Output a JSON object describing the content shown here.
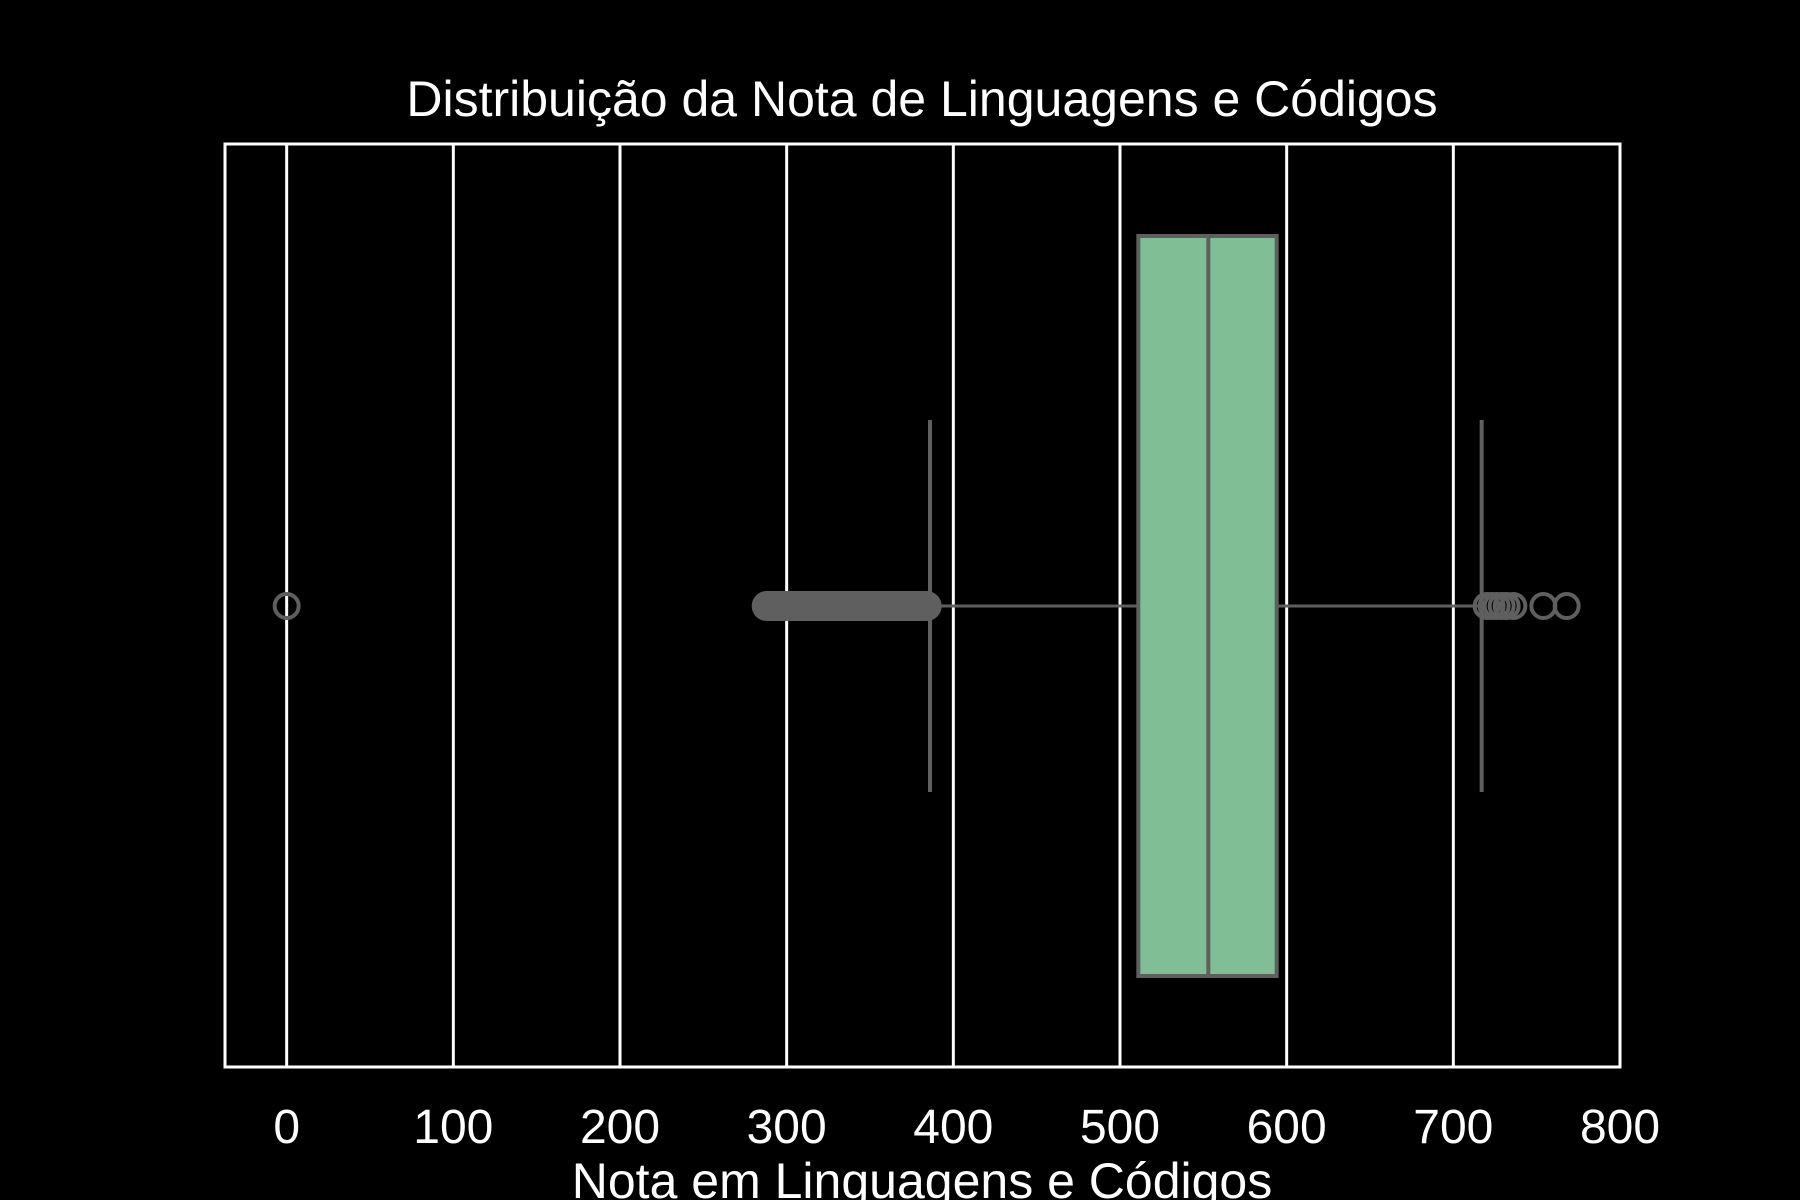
{
  "chart_data": {
    "type": "boxplot",
    "orientation": "horizontal",
    "title": "Distribuição da Nota de Linguagens e Códigos",
    "xlabel": "Nota em Linguagens e Códigos",
    "ylabel": "",
    "xlim": [
      -37,
      800
    ],
    "xticks": [
      0,
      100,
      200,
      300,
      400,
      500,
      600,
      700,
      800
    ],
    "grid": "vertical",
    "box": {
      "whisker_low": 386,
      "q1": 511,
      "median": 553,
      "q3": 594,
      "whisker_high": 717
    },
    "outliers": [
      0,
      288,
      292,
      296,
      300,
      305,
      310,
      316,
      322,
      328,
      335,
      342,
      349,
      356,
      363,
      370,
      376,
      381,
      384,
      720,
      723,
      726,
      729,
      732,
      736,
      754,
      768
    ]
  },
  "colors": {
    "background": "#000000",
    "axes_frame": "#ffffff",
    "grid": "#ffffff",
    "box_fill": "#80bf95",
    "box_line": "#5f5f5f",
    "text": "#ffffff"
  }
}
